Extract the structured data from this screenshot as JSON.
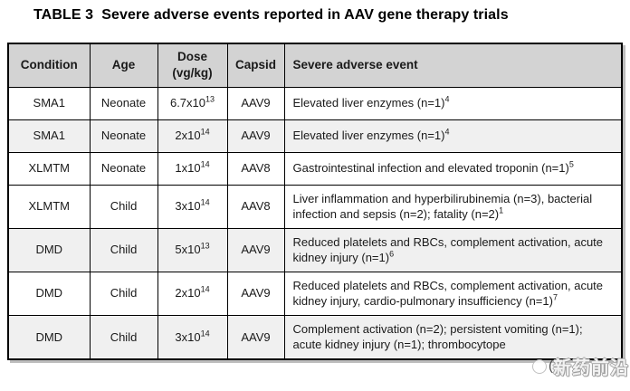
{
  "title": "TABLE 3  Severe adverse events reported in AAV gene therapy trials",
  "table": {
    "headers": [
      {
        "label": "Condition"
      },
      {
        "label": "Age"
      },
      {
        "label": "Dose",
        "sub": "(vg/kg)"
      },
      {
        "label": "Capsid"
      },
      {
        "label": "Severe adverse event"
      }
    ],
    "rows": [
      {
        "condition": "SMA1",
        "age": "Neonate",
        "dose": {
          "base": "6.7x10",
          "exp": "13"
        },
        "capsid": "AAV9",
        "event": {
          "text": "Elevated liver enzymes (n=1)",
          "ref": "4"
        },
        "shaded": false
      },
      {
        "condition": "SMA1",
        "age": "Neonate",
        "dose": {
          "base": "2x10",
          "exp": "14"
        },
        "capsid": "AAV9",
        "event": {
          "text": "Elevated liver enzymes (n=1)",
          "ref": "4"
        },
        "shaded": true
      },
      {
        "condition": "XLMTM",
        "age": "Neonate",
        "dose": {
          "base": "1x10",
          "exp": "14"
        },
        "capsid": "AAV8",
        "event": {
          "text": "Gastrointestinal infection and elevated troponin (n=1)",
          "ref": "5"
        },
        "shaded": false
      },
      {
        "condition": "XLMTM",
        "age": "Child",
        "dose": {
          "base": "3x10",
          "exp": "14"
        },
        "capsid": "AAV8",
        "event": {
          "text": "Liver inflammation and hyperbilirubinemia (n=3), bacterial infection and sepsis (n=2); fatality (n=2)",
          "ref": "1"
        },
        "shaded": false
      },
      {
        "condition": "DMD",
        "age": "Child",
        "dose": {
          "base": "5x10",
          "exp": "13"
        },
        "capsid": "AAV9",
        "event": {
          "text": "Reduced platelets and RBCs, complement activation, acute kidney injury (n=1)",
          "ref": "6"
        },
        "shaded": true
      },
      {
        "condition": "DMD",
        "age": "Child",
        "dose": {
          "base": "2x10",
          "exp": "14"
        },
        "capsid": "AAV9",
        "event": {
          "text": "Reduced platelets and RBCs, complement activation, acute kidney injury, cardio-pulmonary insufficiency (n=1)",
          "ref": "7"
        },
        "shaded": false
      },
      {
        "condition": "DMD",
        "age": "Child",
        "dose": {
          "base": "3x10",
          "exp": "14"
        },
        "capsid": "AAV9",
        "event": {
          "text": "Complement activation (n=2); persistent vomiting (n=1); acute kidney injury (n=1); thrombocytope",
          "obscured": true
        },
        "shaded": true
      }
    ]
  },
  "watermark": {
    "paren": "(",
    "text": "新药前沿"
  },
  "colors": {
    "header_bg": "#d3d3d3",
    "shaded_row_bg": "#f0f0f0",
    "border": "#000000",
    "shadow": "#bdbdbd",
    "text": "#1a1a1a"
  }
}
